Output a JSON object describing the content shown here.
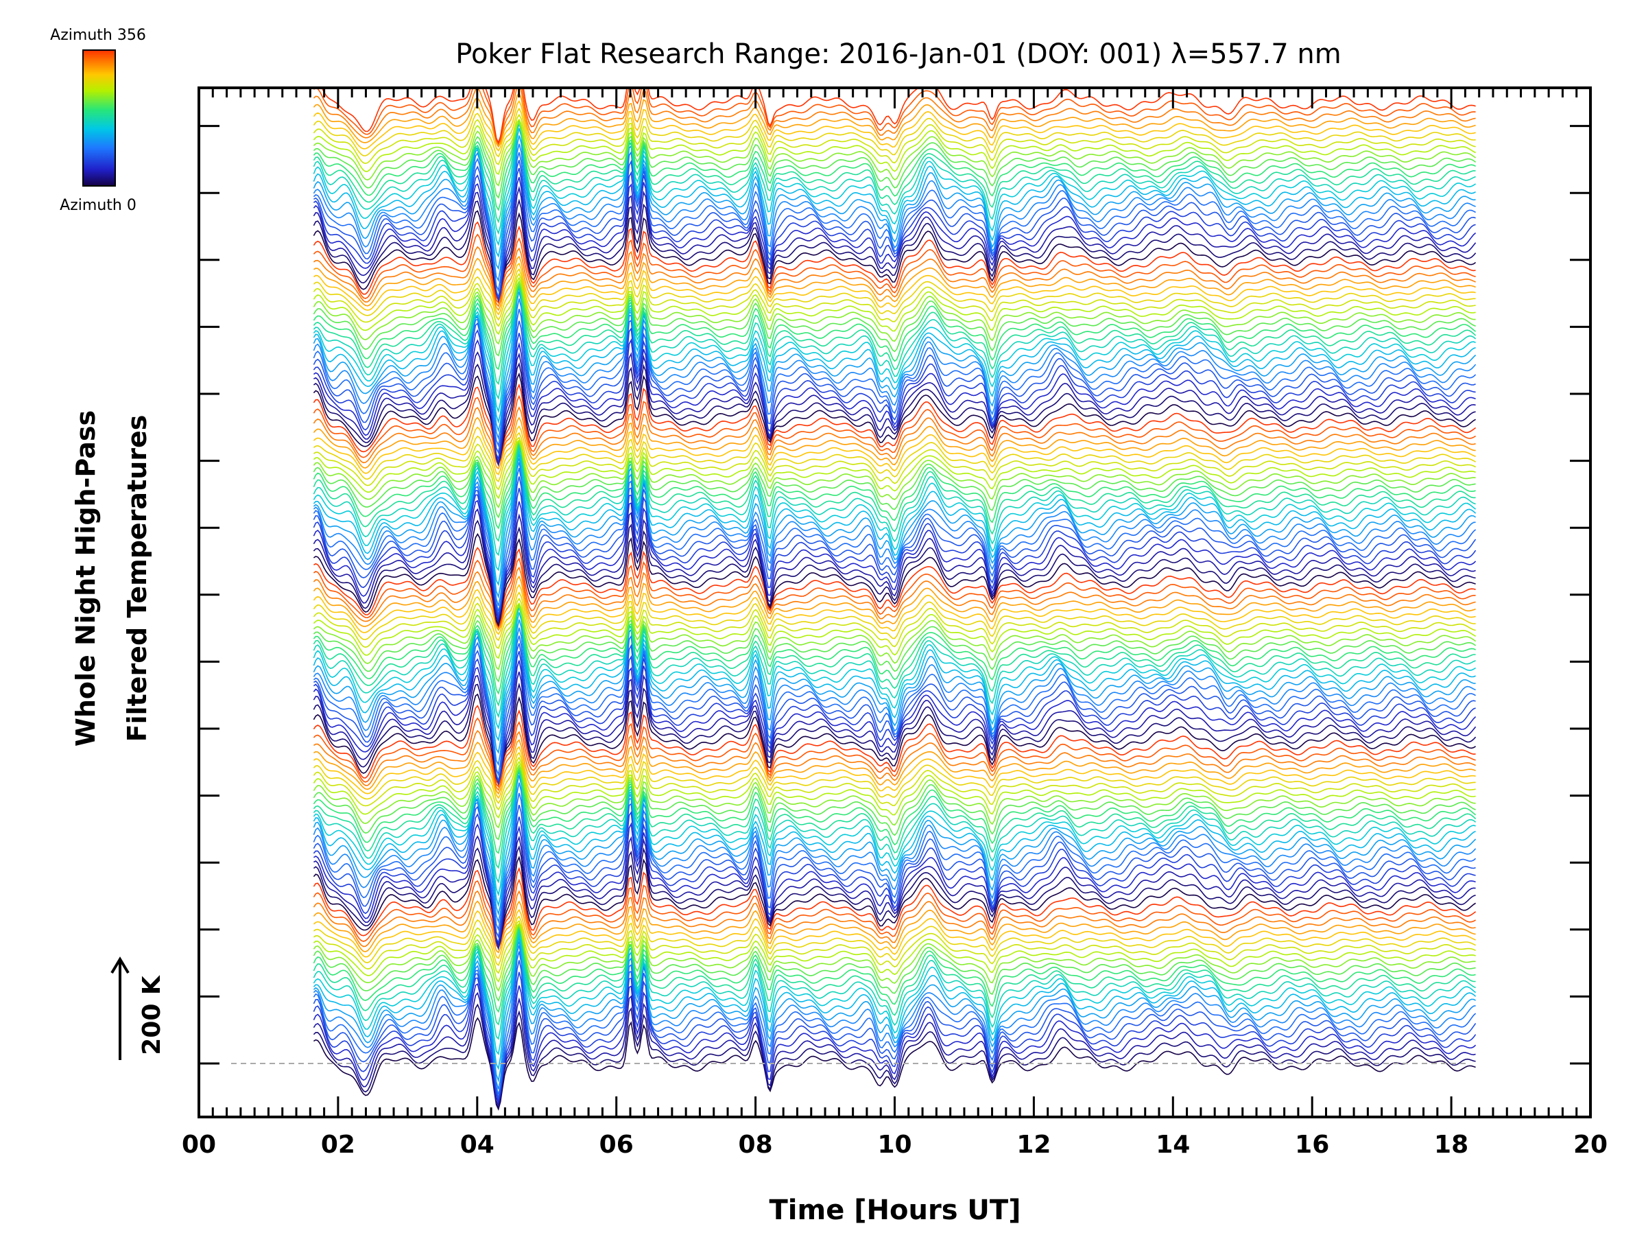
{
  "chart_data": {
    "type": "line",
    "title": "Poker Flat Research Range: 2016-Jan-01 (DOY: 001) λ=557.7 nm",
    "xlabel": "Time [Hours UT]",
    "ylabel_line1": "Whole Night High-Pass",
    "ylabel_line2": "Filtered Temperatures",
    "xlim": [
      0,
      20
    ],
    "x_ticks": [
      "00",
      "02",
      "04",
      "06",
      "08",
      "10",
      "12",
      "14",
      "16",
      "18",
      "20"
    ],
    "data_start_hour": 1.65,
    "data_end_hour": 18.35,
    "scale_bar": "200 K",
    "colorbar": {
      "top_label": "Azimuth 356",
      "bottom_label": "Azimuth 0",
      "min": 0,
      "max": 356
    },
    "series_count": 144,
    "azimuth_cycle_length": 24,
    "traces_description": "Stacked high-pass filtered temperature time series, one per azimuth, colored by azimuth (0 = dark blue, 356 = red)",
    "features": [
      {
        "hour": 1.7,
        "amplitude": 1.0,
        "width": 0.12
      },
      {
        "hour": 2.4,
        "amplitude": -1.3,
        "width": 0.18
      },
      {
        "hour": 3.5,
        "amplitude": 0.6,
        "width": 0.15
      },
      {
        "hour": 4.0,
        "amplitude": 1.8,
        "width": 0.1
      },
      {
        "hour": 4.3,
        "amplitude": -2.0,
        "width": 0.08
      },
      {
        "hour": 4.6,
        "amplitude": 2.2,
        "width": 0.08
      },
      {
        "hour": 4.8,
        "amplitude": -0.8,
        "width": 0.08
      },
      {
        "hour": 6.2,
        "amplitude": 1.8,
        "width": 0.06
      },
      {
        "hour": 6.4,
        "amplitude": 1.6,
        "width": 0.06
      },
      {
        "hour": 8.0,
        "amplitude": 1.0,
        "width": 0.08
      },
      {
        "hour": 8.2,
        "amplitude": -1.0,
        "width": 0.06
      },
      {
        "hour": 9.8,
        "amplitude": -0.9,
        "width": 0.1
      },
      {
        "hour": 10.0,
        "amplitude": -1.2,
        "width": 0.1
      },
      {
        "hour": 10.5,
        "amplitude": 1.1,
        "width": 0.18
      },
      {
        "hour": 11.4,
        "amplitude": -1.2,
        "width": 0.08
      },
      {
        "hour": 12.4,
        "amplitude": 0.5,
        "width": 0.2
      },
      {
        "hour": 14.2,
        "amplitude": 0.5,
        "width": 0.3
      },
      {
        "hour": 14.8,
        "amplitude": -0.4,
        "width": 0.15
      }
    ]
  }
}
